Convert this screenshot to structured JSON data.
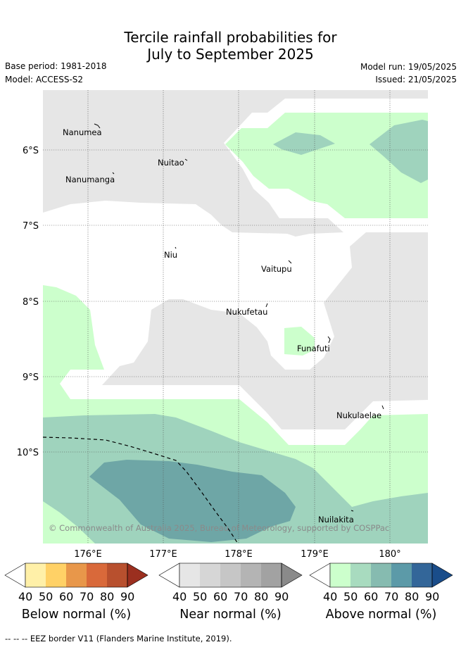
{
  "header": {
    "title_line1": "Tercile rainfall probabilities for",
    "title_line2": "July to September 2025",
    "base_period": "Base period: 1981-2018",
    "model": "Model: ACCESS-S2",
    "model_run": "Model run: 19/05/2025",
    "issued": "Issued: 21/05/2025"
  },
  "map": {
    "lat_labels": [
      "6°S",
      "7°S",
      "8°S",
      "9°S",
      "10°S"
    ],
    "lon_labels": [
      "176°E",
      "177°E",
      "178°E",
      "179°E",
      "180°"
    ],
    "places": [
      {
        "name": "Nanumea"
      },
      {
        "name": "Nuitao"
      },
      {
        "name": "Nanumanga"
      },
      {
        "name": "Niu"
      },
      {
        "name": "Vaitupu"
      },
      {
        "name": "Nukufetau"
      },
      {
        "name": "Funafuti"
      },
      {
        "name": "Nukulaelae"
      },
      {
        "name": "Nuilakita"
      }
    ],
    "copyright": "© Commonwealth of Australia 2025, Bureau of Meteorology, supported by COSPPac",
    "colors": {
      "near_normal_fill": "#e6e6e6",
      "above_40": "#ccffcc",
      "above_50": "#9fd3bd",
      "above_60": "#6ea6a6"
    }
  },
  "legend": {
    "ticks": [
      "40",
      "50",
      "60",
      "70",
      "80",
      "90"
    ],
    "colorbars": [
      {
        "label": "Below normal (%)",
        "colors": [
          "#ffffff",
          "#fff0a8",
          "#ffd166",
          "#e8974a",
          "#d9693a",
          "#b8502e",
          "#9b2f1f"
        ]
      },
      {
        "label": "Near normal (%)",
        "colors": [
          "#ffffff",
          "#e6e6e6",
          "#d6d6d6",
          "#c6c6c6",
          "#b4b4b4",
          "#a2a2a2",
          "#8a8a8a"
        ]
      },
      {
        "label": "Above normal (%)",
        "colors": [
          "#ffffff",
          "#ccffcc",
          "#a8dbbf",
          "#86bbb0",
          "#5c9aa8",
          "#336699",
          "#1a4d8a"
        ]
      }
    ]
  },
  "footnote": "-- -- -- EEZ border V11 (Flanders Marine Institute, 2019)."
}
